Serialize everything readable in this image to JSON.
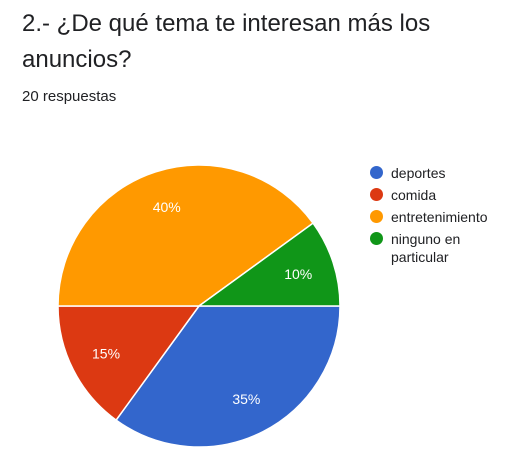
{
  "question": {
    "title": "2.- ¿De qué tema te interesan más los anuncios?",
    "responses": "20 respuestas"
  },
  "chart_data": {
    "type": "pie",
    "title": "",
    "slices": [
      {
        "label": "deportes",
        "value": 35,
        "color": "#3366CC",
        "display": "35%"
      },
      {
        "label": "comida",
        "value": 15,
        "color": "#DC3912",
        "display": "15%"
      },
      {
        "label": "entretenimiento",
        "value": 40,
        "color": "#FF9900",
        "display": "40%"
      },
      {
        "label": "ninguno en particular",
        "value": 10,
        "color": "#109618",
        "display": "10%"
      }
    ],
    "start": "3 o'clock, clockwise",
    "legend_position": "right"
  }
}
